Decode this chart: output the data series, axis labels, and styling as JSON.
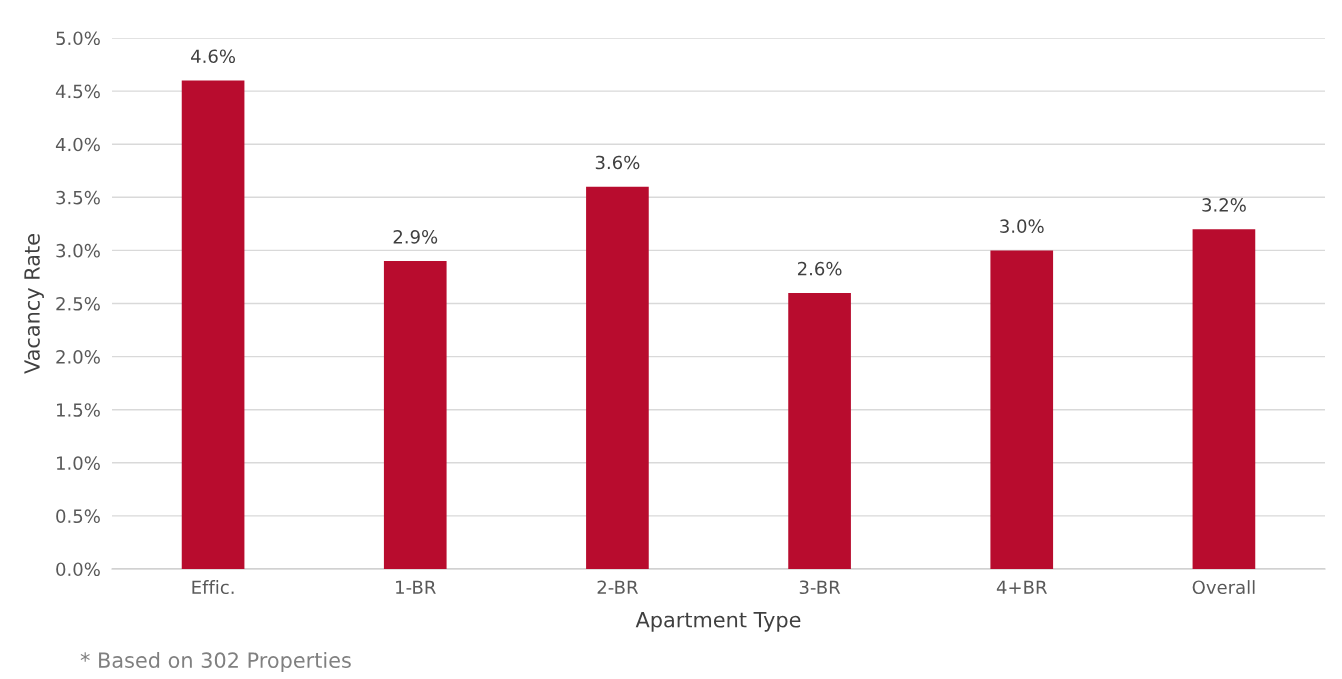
{
  "chart_data": {
    "type": "bar",
    "xlabel": "Apartment Type",
    "ylabel": "Vacancy Rate",
    "categories": [
      "Effic.",
      "1-BR",
      "2-BR",
      "3-BR",
      "4+BR",
      "Overall"
    ],
    "values": [
      4.6,
      2.9,
      3.6,
      2.6,
      3.0,
      3.2
    ],
    "value_labels": [
      "4.6%",
      "2.9%",
      "3.6%",
      "2.6%",
      "3.0%",
      "3.2%"
    ],
    "color": "#b80c2e",
    "ylim": [
      0,
      5
    ],
    "yticks": [
      {
        "value": 0,
        "label": "0.0%"
      },
      {
        "value": 0.5,
        "label": "0.5%"
      },
      {
        "value": 1,
        "label": "1.0%"
      },
      {
        "value": 1.5,
        "label": "1.5%"
      },
      {
        "value": 2,
        "label": "2.0%"
      },
      {
        "value": 2.5,
        "label": "2.5%"
      },
      {
        "value": 3,
        "label": "3.0%"
      },
      {
        "value": 3.5,
        "label": "3.5%"
      },
      {
        "value": 4,
        "label": "4.0%"
      },
      {
        "value": 4.5,
        "label": "4.5%"
      },
      {
        "value": 5,
        "label": "5.0%"
      }
    ],
    "grid": "y",
    "annotations": [
      "* Based on 302 Properties"
    ]
  }
}
